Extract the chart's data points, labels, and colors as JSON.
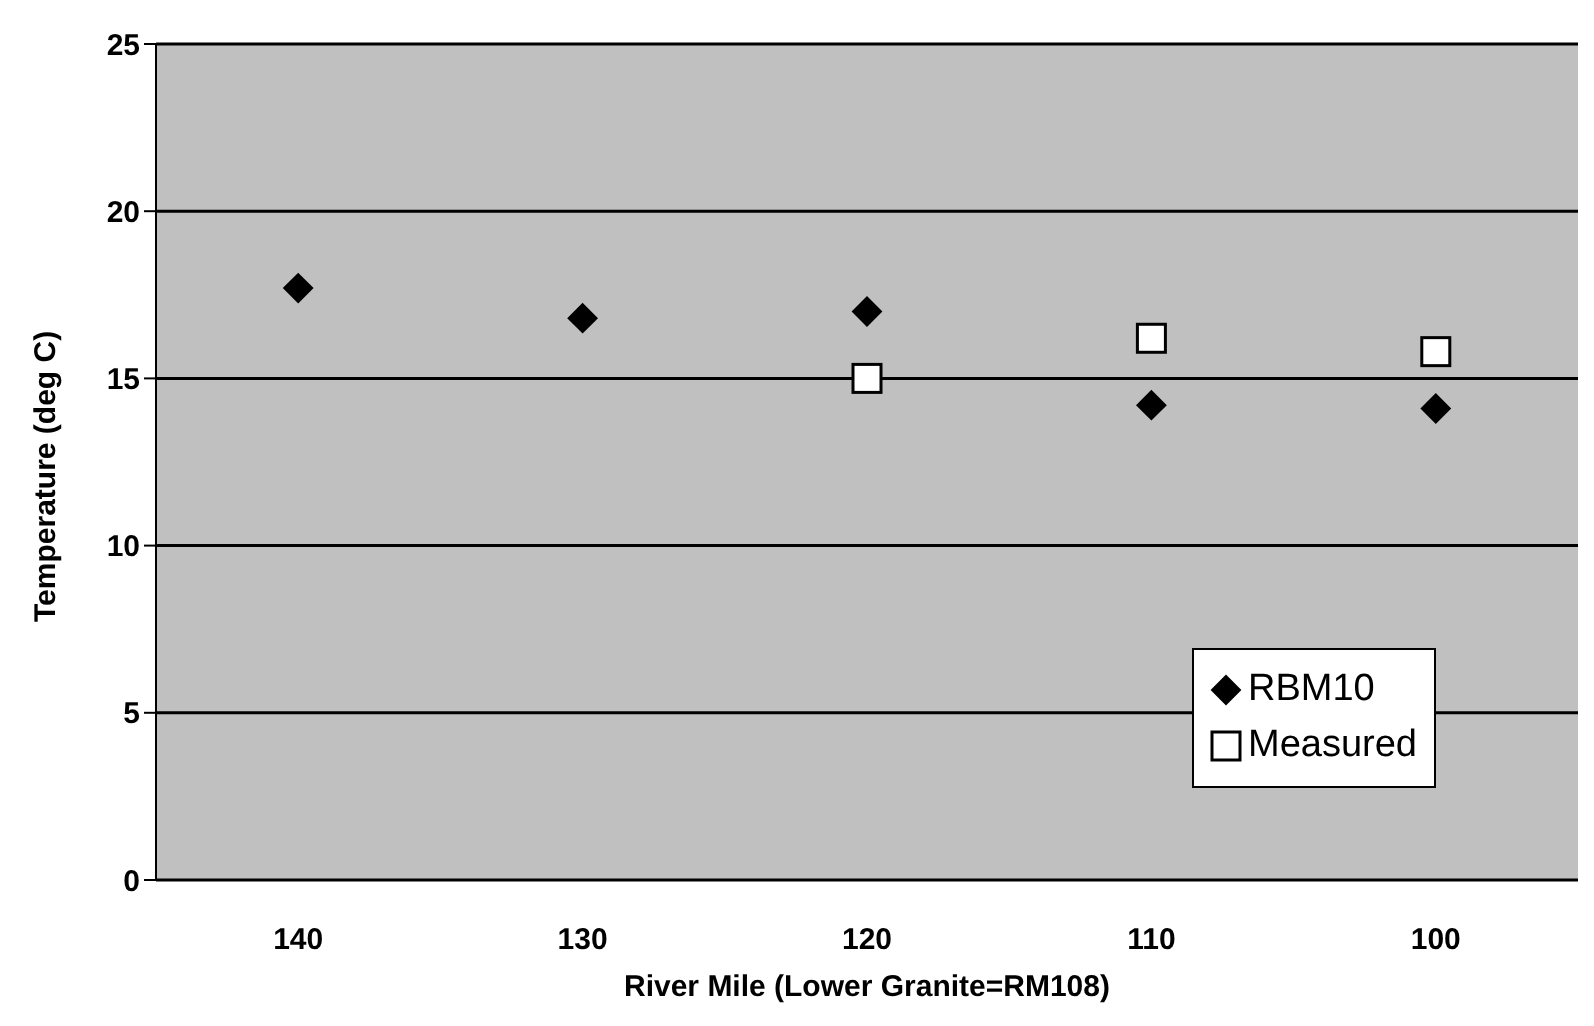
{
  "chart_data": {
    "type": "scatter",
    "xlabel": "River Mile (Lower Granite=RM108)",
    "ylabel": "Temperature (deg C)",
    "categories": [
      "140",
      "130",
      "120",
      "110",
      "100"
    ],
    "series": [
      {
        "name": "RBM10",
        "color": "#000000",
        "marker": "diamond",
        "values": [
          17.7,
          16.8,
          17.0,
          14.2,
          14.1
        ]
      },
      {
        "name": "Measured",
        "color": "#ffffff",
        "marker": "square",
        "values": [
          null,
          null,
          15.0,
          16.2,
          15.8
        ]
      }
    ],
    "ylim": [
      0,
      25
    ],
    "yticks": [
      0,
      5,
      10,
      15,
      20,
      25
    ],
    "grid": "y",
    "legend": "bottom right"
  }
}
